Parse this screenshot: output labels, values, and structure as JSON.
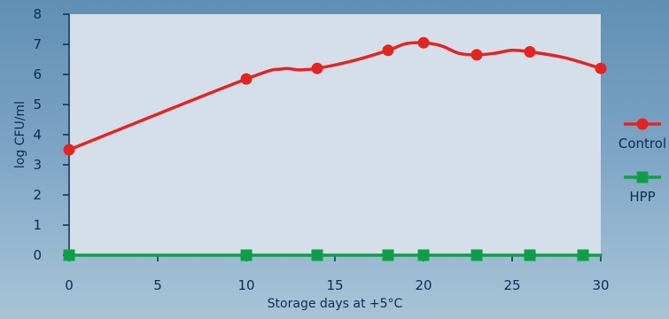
{
  "chart_data": {
    "type": "line",
    "xlabel": "Storage days at +5°C",
    "ylabel": "log CFU/ml",
    "xlim": [
      0,
      30
    ],
    "ylim": [
      0,
      8
    ],
    "xticks": [
      0,
      5,
      10,
      15,
      20,
      25,
      30
    ],
    "yticks": [
      0,
      1,
      2,
      3,
      4,
      5,
      6,
      7,
      8
    ],
    "grid": false,
    "legend_position": "right",
    "series": [
      {
        "name": "Control",
        "color": "#e52421",
        "marker": "circle",
        "x": [
          0,
          10,
          14,
          18,
          20,
          23,
          26,
          30
        ],
        "y": [
          3.5,
          5.85,
          6.2,
          6.8,
          7.05,
          6.65,
          6.75,
          6.2
        ],
        "curve_x": [
          0,
          10,
          12,
          13,
          14,
          16,
          18,
          19,
          20,
          21,
          22,
          23,
          24,
          25,
          26,
          28,
          30
        ],
        "curve_y": [
          3.5,
          5.85,
          6.18,
          6.15,
          6.2,
          6.45,
          6.8,
          7.02,
          7.05,
          6.95,
          6.7,
          6.65,
          6.7,
          6.8,
          6.75,
          6.55,
          6.2
        ]
      },
      {
        "name": "HPP",
        "color": "#0f9e48",
        "marker": "square",
        "x": [
          0,
          10,
          14,
          18,
          20,
          23,
          26,
          29
        ],
        "y": [
          0,
          0,
          0,
          0,
          0,
          0,
          0,
          0
        ],
        "curve_x": [
          0,
          30
        ],
        "curve_y": [
          0,
          0
        ]
      }
    ],
    "plot_background": "#d4dfe9"
  }
}
